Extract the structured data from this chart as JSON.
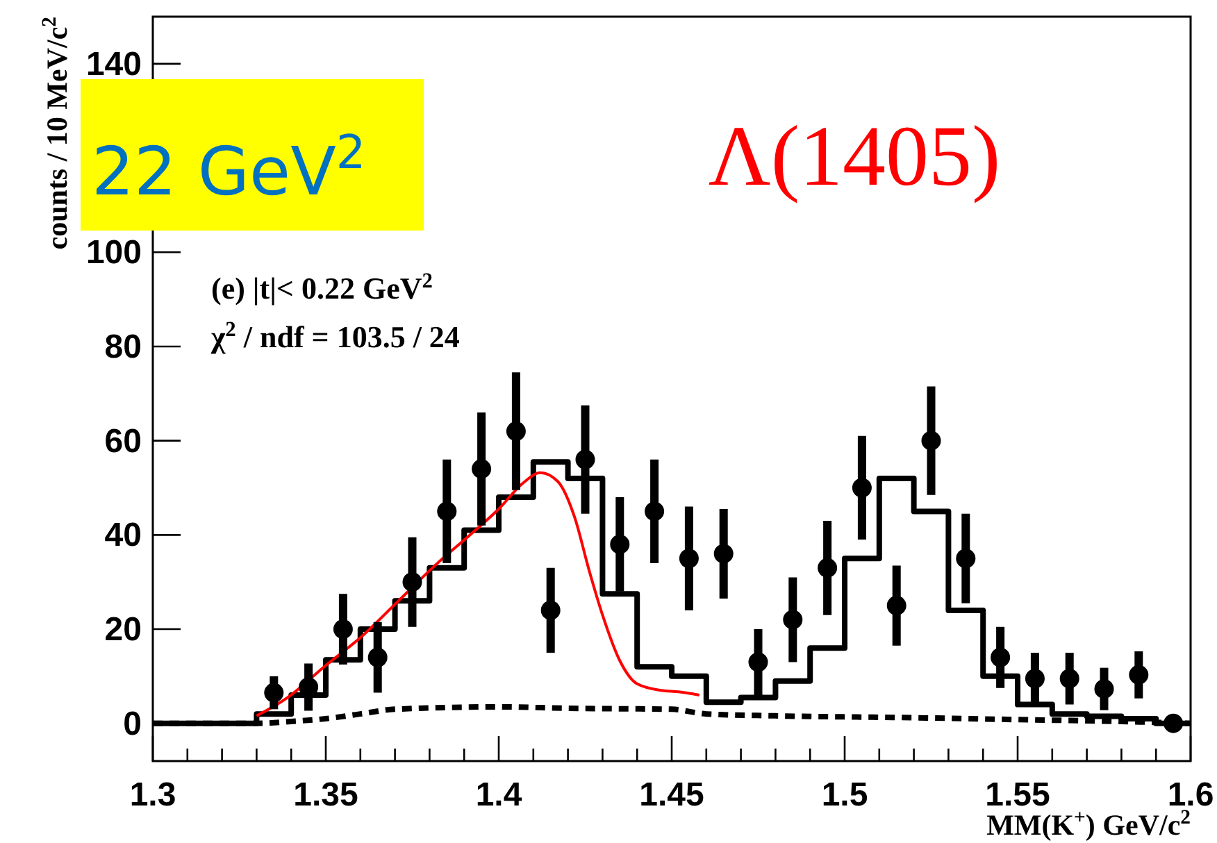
{
  "chart_data": {
    "type": "scatter",
    "xlabel": "MM(K$^{+}$)  GeV/c$^{2}$",
    "ylabel": "counts / 10 MeV/c$^{2}$",
    "annotations": [
      "(e)  |t|< 0.22 GeV$^{2}$",
      "χ$^{2}$ / ndf =  103.5 / 24",
      "Λ(1405)",
      "22 GeV$^{2}$"
    ],
    "xlim": [
      1.3,
      1.6
    ],
    "ylim": [
      -8,
      150
    ],
    "xticks": [
      1.3,
      {
        "value": 1.31,
        "label": null
      },
      {
        "value": 1.32,
        "label": null
      },
      {
        "value": 1.33,
        "label": null
      },
      {
        "value": 1.34,
        "label": null
      },
      1.35,
      {
        "value": 1.36,
        "label": null
      },
      {
        "value": 1.37,
        "label": null
      },
      {
        "value": 1.38,
        "label": null
      },
      {
        "value": 1.39,
        "label": null
      },
      1.4,
      {
        "value": 1.41,
        "label": null
      },
      {
        "value": 1.42,
        "label": null
      },
      {
        "value": 1.43,
        "label": null
      },
      {
        "value": 1.44,
        "label": null
      },
      1.45,
      {
        "value": 1.46,
        "label": null
      },
      {
        "value": 1.47,
        "label": null
      },
      {
        "value": 1.48,
        "label": null
      },
      {
        "value": 1.49,
        "label": null
      },
      1.5,
      {
        "value": 1.51,
        "label": null
      },
      {
        "value": 1.52,
        "label": null
      },
      {
        "value": 1.53,
        "label": null
      },
      {
        "value": 1.54,
        "label": null
      },
      1.55,
      {
        "value": 1.56,
        "label": null
      },
      {
        "value": 1.57,
        "label": null
      },
      {
        "value": 1.58,
        "label": null
      },
      {
        "value": 1.59,
        "label": null
      },
      1.6
    ],
    "yticks": [
      0,
      20,
      40,
      60,
      80,
      100,
      140
    ],
    "series": [
      {
        "type": "step",
        "color": "#000000",
        "x": [
          1.3,
          1.33,
          1.34,
          1.35,
          1.36,
          1.37,
          1.38,
          1.39,
          1.4,
          1.41,
          1.42,
          1.43,
          1.44,
          1.45,
          1.46,
          1.47,
          1.48,
          1.49,
          1.5,
          1.51,
          1.52,
          1.53,
          1.54,
          1.55,
          1.56,
          1.57,
          1.58,
          1.59,
          1.6
        ],
        "values": [
          0,
          2,
          6,
          13.5,
          20,
          26,
          33,
          41,
          48,
          55.5,
          52,
          27.5,
          12,
          10,
          4.5,
          5.5,
          9,
          16,
          35,
          52,
          45,
          24,
          10,
          4,
          2,
          1.5,
          1,
          0,
          0
        ]
      },
      {
        "type": "line",
        "line_style": "dashed",
        "color": "#000000",
        "x": [
          1.3,
          1.33,
          1.34,
          1.35,
          1.36,
          1.37,
          1.4,
          1.42,
          1.45,
          1.46,
          1.48,
          1.52,
          1.55,
          1.58,
          1.6
        ],
        "values": [
          0,
          0,
          0.4,
          1,
          2,
          3,
          3.5,
          3.2,
          3,
          2,
          1.6,
          1.2,
          0.8,
          0.4,
          0
        ]
      },
      {
        "type": "line",
        "color": "#ff0000",
        "x": [
          1.33,
          1.339,
          1.35,
          1.36,
          1.371,
          1.382,
          1.392,
          1.4,
          1.407,
          1.412,
          1.417,
          1.422,
          1.426,
          1.43,
          1.435,
          1.44,
          1.447,
          1.452,
          1.458
        ],
        "values": [
          1.6,
          5.5,
          12.3,
          18.2,
          26,
          33.8,
          40.2,
          45.5,
          51,
          53.2,
          51.4,
          43.6,
          32.8,
          23,
          13.3,
          8.4,
          7,
          6.7,
          6
        ]
      },
      {
        "marker": "circle",
        "color": "#000000",
        "x": [
          1.335,
          1.345,
          1.355,
          1.365,
          1.375,
          1.385,
          1.395,
          1.405,
          1.415,
          1.425,
          1.435,
          1.445,
          1.455,
          1.465,
          1.475,
          1.485,
          1.495,
          1.505,
          1.515,
          1.525,
          1.535,
          1.545,
          1.555,
          1.565,
          1.575,
          1.585,
          1.595
        ],
        "values": [
          6.5,
          7.7,
          20,
          14,
          30,
          45,
          54,
          62,
          24,
          56,
          38,
          45,
          35,
          36,
          13,
          22,
          33,
          50,
          25,
          60,
          35,
          14,
          9.5,
          9.5,
          7.3,
          10.3,
          0
        ],
        "errors": [
          3.5,
          5,
          7.5,
          7.5,
          9.5,
          11,
          12,
          12.5,
          9,
          11.5,
          10,
          11,
          11,
          9.5,
          7,
          9,
          10,
          11,
          8.5,
          11.5,
          9.5,
          6.5,
          5.5,
          5.5,
          4.5,
          5,
          null
        ]
      }
    ]
  }
}
